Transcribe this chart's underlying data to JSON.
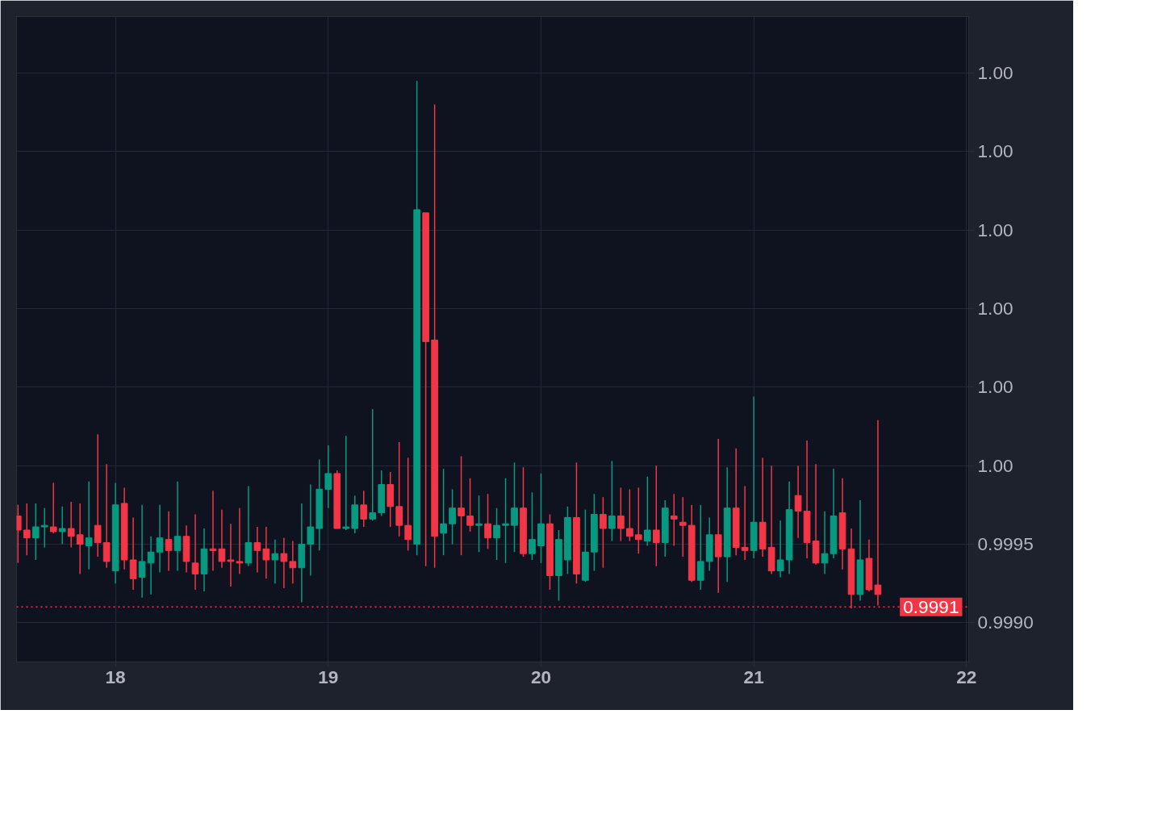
{
  "chart_data": {
    "type": "candlestick",
    "x": [
      17.5417,
      17.5833,
      17.625,
      17.6667,
      17.7083,
      17.75,
      17.7917,
      17.8333,
      17.875,
      17.9167,
      17.9583,
      18,
      18.0417,
      18.0833,
      18.125,
      18.1667,
      18.2083,
      18.25,
      18.2917,
      18.3333,
      18.375,
      18.4167,
      18.4583,
      18.5,
      18.5417,
      18.5833,
      18.625,
      18.6667,
      18.7083,
      18.75,
      18.7917,
      18.8333,
      18.875,
      18.9167,
      18.9583,
      19,
      19.0417,
      19.0833,
      19.125,
      19.1667,
      19.2083,
      19.25,
      19.2917,
      19.3333,
      19.375,
      19.4167,
      19.4583,
      19.5,
      19.5417,
      19.5833,
      19.625,
      19.6667,
      19.7083,
      19.75,
      19.7917,
      19.8333,
      19.875,
      19.9167,
      19.9583,
      20,
      20.0417,
      20.0833,
      20.125,
      20.1667,
      20.2083,
      20.25,
      20.2917,
      20.3333,
      20.375,
      20.4167,
      20.4583,
      20.5,
      20.5417,
      20.5833,
      20.625,
      20.6667,
      20.7083,
      20.75,
      20.7917,
      20.8333,
      20.875,
      20.9167,
      20.9583,
      21,
      21.0417,
      21.0833,
      21.125,
      21.1667,
      21.2083,
      21.25,
      21.2917,
      21.3333,
      21.375,
      21.4167,
      21.4583,
      21.5,
      21.5417,
      21.5833
    ],
    "ohlc": [
      [
        0.99968,
        0.99975,
        0.99938,
        0.99959
      ],
      [
        0.99959,
        0.99976,
        0.99943,
        0.99954
      ],
      [
        0.99954,
        0.99976,
        0.9994,
        0.99961
      ],
      [
        0.99961,
        0.99973,
        0.99948,
        0.99962
      ],
      [
        0.99961,
        0.99989,
        0.99957,
        0.99958
      ],
      [
        0.99958,
        0.99974,
        0.9995,
        0.9996
      ],
      [
        0.9996,
        0.99977,
        0.99948,
        0.99955
      ],
      [
        0.99956,
        0.99976,
        0.99931,
        0.9995
      ],
      [
        0.99949,
        0.9999,
        0.99934,
        0.99954
      ],
      [
        0.99962,
        1.0002,
        0.99942,
        0.99951
      ],
      [
        0.99951,
        1.00001,
        0.99935,
        0.99939
      ],
      [
        0.99933,
        0.99989,
        0.99925,
        0.99975
      ],
      [
        0.99976,
        0.99986,
        0.99934,
        0.9994
      ],
      [
        0.9994,
        0.99967,
        0.99921,
        0.99928
      ],
      [
        0.99929,
        0.99975,
        0.99916,
        0.99939
      ],
      [
        0.99938,
        0.99955,
        0.99918,
        0.99945
      ],
      [
        0.99945,
        0.99975,
        0.99932,
        0.99954
      ],
      [
        0.99953,
        0.99971,
        0.99933,
        0.99946
      ],
      [
        0.99946,
        0.9999,
        0.99933,
        0.99955
      ],
      [
        0.99955,
        0.99962,
        0.99932,
        0.99939
      ],
      [
        0.99938,
        0.99969,
        0.99921,
        0.99931
      ],
      [
        0.99931,
        0.9996,
        0.9992,
        0.99947
      ],
      [
        0.99947,
        0.99984,
        0.99933,
        0.99946
      ],
      [
        0.99947,
        0.99972,
        0.99935,
        0.99939
      ],
      [
        0.9994,
        0.99963,
        0.99923,
        0.99939
      ],
      [
        0.99939,
        0.99973,
        0.99931,
        0.99938
      ],
      [
        0.99938,
        0.99987,
        0.99936,
        0.99951
      ],
      [
        0.99951,
        0.99961,
        0.99932,
        0.99946
      ],
      [
        0.99947,
        0.99961,
        0.99928,
        0.9994
      ],
      [
        0.9994,
        0.99953,
        0.99925,
        0.99944
      ],
      [
        0.99944,
        0.99954,
        0.99922,
        0.99939
      ],
      [
        0.99939,
        0.99952,
        0.99925,
        0.99935
      ],
      [
        0.99935,
        0.99976,
        0.99913,
        0.9995
      ],
      [
        0.9995,
        0.99988,
        0.9993,
        0.99961
      ],
      [
        0.9996,
        1.00004,
        0.99946,
        0.99985
      ],
      [
        0.99985,
        1.00013,
        0.99973,
        0.99995
      ],
      [
        0.99995,
        0.99997,
        0.9996,
        0.9996
      ],
      [
        0.9996,
        1.00019,
        0.99959,
        0.99961
      ],
      [
        0.9996,
        0.99981,
        0.99957,
        0.99975
      ],
      [
        0.99975,
        0.99984,
        0.99961,
        0.99966
      ],
      [
        0.99966,
        1.00036,
        0.99965,
        0.9997
      ],
      [
        0.9997,
        0.99997,
        0.99968,
        0.99988
      ],
      [
        0.99988,
        0.99996,
        0.99961,
        0.99974
      ],
      [
        0.99974,
        1.00015,
        0.99955,
        0.99962
      ],
      [
        0.99962,
        1.00005,
        0.99946,
        0.99953
      ],
      [
        0.9995,
        1.00245,
        0.99943,
        1.00163
      ],
      [
        1.00161,
        1.00161,
        0.99936,
        1.00079
      ],
      [
        1.0008,
        1.0023,
        0.99935,
        0.99955
      ],
      [
        0.99957,
        0.99998,
        0.99943,
        0.99963
      ],
      [
        0.99963,
        0.99985,
        0.9995,
        0.99973
      ],
      [
        0.99973,
        1.00006,
        0.99943,
        0.99968
      ],
      [
        0.99968,
        0.99992,
        0.99958,
        0.99962
      ],
      [
        0.99962,
        0.99981,
        0.99945,
        0.99963
      ],
      [
        0.99963,
        0.99982,
        0.99947,
        0.99954
      ],
      [
        0.99954,
        0.99973,
        0.9994,
        0.99962
      ],
      [
        0.99962,
        0.99992,
        0.99938,
        0.99963
      ],
      [
        0.99962,
        1.00002,
        0.99945,
        0.99973
      ],
      [
        0.99973,
        0.99999,
        0.99942,
        0.99944
      ],
      [
        0.99944,
        0.99983,
        0.9994,
        0.99953
      ],
      [
        0.99949,
        0.99995,
        0.99938,
        0.99963
      ],
      [
        0.99963,
        0.99969,
        0.99921,
        0.9993
      ],
      [
        0.9993,
        0.99959,
        0.99914,
        0.99953
      ],
      [
        0.9994,
        0.99974,
        0.99931,
        0.99967
      ],
      [
        0.99967,
        1.00002,
        0.99925,
        0.99931
      ],
      [
        0.99927,
        0.99972,
        0.99926,
        0.99945
      ],
      [
        0.99945,
        0.99982,
        0.99933,
        0.99969
      ],
      [
        0.99969,
        0.9998,
        0.99935,
        0.9996
      ],
      [
        0.9996,
        1.00003,
        0.99952,
        0.99968
      ],
      [
        0.99968,
        0.99986,
        0.99952,
        0.9996
      ],
      [
        0.9996,
        0.99985,
        0.99952,
        0.99955
      ],
      [
        0.99956,
        0.99986,
        0.99944,
        0.99953
      ],
      [
        0.99952,
        0.99993,
        0.99949,
        0.99959
      ],
      [
        0.99959,
        1.0,
        0.99936,
        0.99951
      ],
      [
        0.99951,
        0.99978,
        0.99942,
        0.99973
      ],
      [
        0.99968,
        0.99982,
        0.99949,
        0.99966
      ],
      [
        0.99964,
        0.9998,
        0.99942,
        0.99962
      ],
      [
        0.99962,
        0.99975,
        0.99926,
        0.99927
      ],
      [
        0.99927,
        0.99975,
        0.99921,
        0.99939
      ],
      [
        0.99939,
        0.99967,
        0.99933,
        0.99956
      ],
      [
        0.99956,
        1.00017,
        0.99919,
        0.99942
      ],
      [
        0.99942,
        0.99999,
        0.99926,
        0.99973
      ],
      [
        0.99973,
        1.00011,
        0.99943,
        0.99948
      ],
      [
        0.99948,
        0.99987,
        0.9994,
        0.99946
      ],
      [
        0.99946,
        1.00044,
        0.99941,
        0.99964
      ],
      [
        0.99964,
        1.00005,
        0.99942,
        0.99947
      ],
      [
        0.99948,
        1.0,
        0.99931,
        0.99933
      ],
      [
        0.99933,
        0.99965,
        0.99929,
        0.9994
      ],
      [
        0.9994,
        0.9999,
        0.99931,
        0.99972
      ],
      [
        0.99981,
        1.0,
        0.99954,
        0.99971
      ],
      [
        0.99971,
        1.00016,
        0.99941,
        0.99951
      ],
      [
        0.99952,
        1.00001,
        0.99937,
        0.99938
      ],
      [
        0.99938,
        0.99971,
        0.99931,
        0.99944
      ],
      [
        0.99944,
        0.99998,
        0.99941,
        0.99968
      ],
      [
        0.9997,
        0.99992,
        0.99934,
        0.99947
      ],
      [
        0.99947,
        0.9996,
        0.99909,
        0.99918
      ],
      [
        0.99918,
        0.99978,
        0.99914,
        0.9994
      ],
      [
        0.99941,
        0.99953,
        0.9992,
        0.99921
      ],
      [
        0.99924,
        1.00029,
        0.99911,
        0.99918
      ]
    ],
    "colors": [
      "#f23645",
      "#f23645",
      "#089981",
      "#089981",
      "#f23645",
      "#089981",
      "#f23645",
      "#f23645",
      "#089981",
      "#f23645",
      "#f23645",
      "#089981",
      "#f23645",
      "#f23645",
      "#089981",
      "#089981",
      "#089981",
      "#f23645",
      "#089981",
      "#f23645",
      "#f23645",
      "#089981",
      "#f23645",
      "#f23645",
      "#f23645",
      "#f23645",
      "#089981",
      "#f23645",
      "#f23645",
      "#089981",
      "#f23645",
      "#f23645",
      "#089981",
      "#089981",
      "#089981",
      "#089981",
      "#f23645",
      "#089981",
      "#089981",
      "#f23645",
      "#089981",
      "#089981",
      "#f23645",
      "#f23645",
      "#f23645",
      "#089981",
      "#f23645",
      "#f23645",
      "#089981",
      "#089981",
      "#f23645",
      "#f23645",
      "#089981",
      "#f23645",
      "#089981",
      "#089981",
      "#089981",
      "#f23645",
      "#089981",
      "#089981",
      "#f23645",
      "#089981",
      "#089981",
      "#f23645",
      "#089981",
      "#089981",
      "#f23645",
      "#089981",
      "#f23645",
      "#f23645",
      "#f23645",
      "#089981",
      "#f23645",
      "#089981",
      "#f23645",
      "#f23645",
      "#f23645",
      "#089981",
      "#089981",
      "#f23645",
      "#089981",
      "#f23645",
      "#f23645",
      "#089981",
      "#f23645",
      "#f23645",
      "#089981",
      "#089981",
      "#f23645",
      "#f23645",
      "#f23645",
      "#089981",
      "#089981",
      "#f23645",
      "#f23645",
      "#089981",
      "#f23645",
      "#f23645"
    ],
    "xlim": [
      17.535,
      22.01
    ],
    "xticks": [
      18,
      19,
      20,
      21,
      22
    ],
    "ylim": [
      0.99875,
      1.00286
    ],
    "yticks": [
      {
        "value": 0.999,
        "label": "0.9990"
      },
      {
        "value": 0.9995,
        "label": "0.9995"
      },
      {
        "value": 1.0,
        "label": "1.00"
      },
      {
        "value": 1.0005,
        "label": "1.00"
      },
      {
        "value": 1.001,
        "label": "1.00"
      },
      {
        "value": 1.0015,
        "label": "1.00"
      },
      {
        "value": 1.002,
        "label": "1.00"
      },
      {
        "value": 1.0025,
        "label": "1.00"
      }
    ],
    "ref_lines": [
      {
        "axis": "y",
        "value": 0.9991,
        "label": "0.9991",
        "color": "#f23645",
        "line_style": "dotted"
      }
    ],
    "grid": true
  }
}
